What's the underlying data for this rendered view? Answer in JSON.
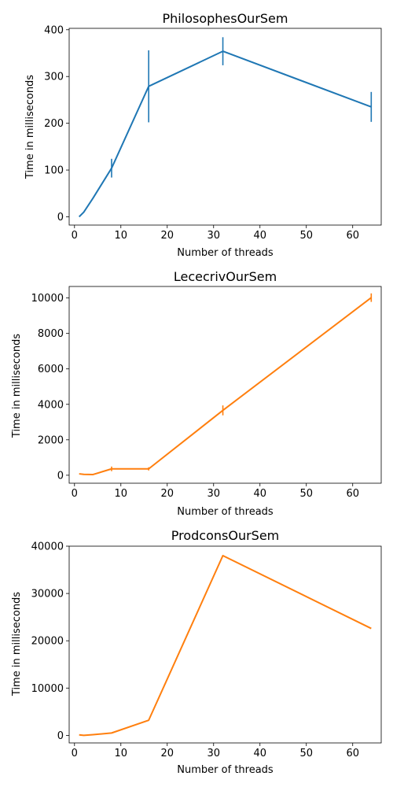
{
  "chart_data": [
    {
      "type": "line",
      "title": "PhilosophesOurSem",
      "xlabel": "Number of threads",
      "ylabel": "Time in milliseconds",
      "xlim": [
        -1.15,
        66.15
      ],
      "ylim": [
        -17.7,
        403
      ],
      "xticks": [
        0,
        10,
        20,
        30,
        40,
        50,
        60
      ],
      "yticks": [
        0,
        100,
        200,
        300,
        400
      ],
      "color": "#1f77b4",
      "grid": false,
      "series": [
        {
          "x": [
            1,
            2,
            4,
            8,
            16,
            32,
            64
          ],
          "y": [
            0,
            10,
            40,
            104,
            279,
            354,
            235
          ],
          "err": [
            0,
            0,
            0,
            20,
            77,
            30,
            32
          ]
        }
      ]
    },
    {
      "type": "line",
      "title": "LececrivOurSem",
      "xlabel": "Number of threads",
      "ylabel": "Time in milliseconds",
      "xlim": [
        -1.15,
        66.15
      ],
      "ylim": [
        -450,
        10650
      ],
      "xticks": [
        0,
        10,
        20,
        30,
        40,
        50,
        60
      ],
      "yticks": [
        0,
        2000,
        4000,
        6000,
        8000,
        10000
      ],
      "color": "#ff7f0e",
      "grid": false,
      "series": [
        {
          "x": [
            1,
            2,
            4,
            8,
            16,
            32,
            64
          ],
          "y": [
            80,
            50,
            40,
            360,
            360,
            3660,
            10020
          ],
          "err": [
            0,
            0,
            0,
            130,
            90,
            280,
            240
          ]
        }
      ]
    },
    {
      "type": "line",
      "title": "ProdconsOurSem",
      "xlabel": "Number of threads",
      "ylabel": "Time in milliseconds",
      "xlim": [
        -1.15,
        66.15
      ],
      "ylim": [
        -1600,
        40000
      ],
      "xticks": [
        0,
        10,
        20,
        30,
        40,
        50,
        60
      ],
      "yticks": [
        0,
        10000,
        20000,
        30000,
        40000
      ],
      "color": "#ff7f0e",
      "grid": false,
      "series": [
        {
          "x": [
            1,
            2,
            4,
            8,
            16,
            32,
            64
          ],
          "y": [
            100,
            0,
            150,
            500,
            3200,
            38000,
            22600
          ],
          "err": [
            0,
            0,
            0,
            0,
            0,
            0,
            0
          ]
        }
      ]
    }
  ]
}
